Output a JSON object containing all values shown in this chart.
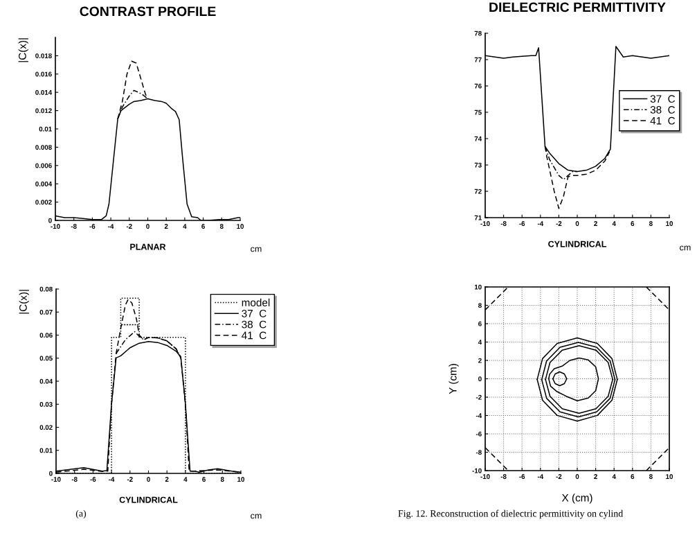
{
  "chart_data": [
    {
      "type": "line",
      "title": "CONTRAST PROFILE",
      "xlabel": "PLANAR",
      "ylabel": "|C(x)|",
      "annotations": [
        "cm"
      ],
      "xlim": [
        -10,
        10
      ],
      "xticks": [
        -10,
        -8,
        -6,
        -4,
        -2,
        0,
        2,
        4,
        6,
        8,
        10
      ],
      "ylim": [
        0,
        0.02
      ],
      "yticks": [
        0,
        0.002,
        0.004,
        0.006,
        0.008,
        0.01,
        0.012,
        0.014,
        0.016,
        0.018
      ],
      "grid": false,
      "legend": false,
      "marker": "none",
      "series": [
        {
          "color": "#000000",
          "line_style": "solid",
          "x": [
            -10,
            -9,
            -8,
            -7,
            -6,
            -5,
            -4.5,
            -4.2,
            -3.25,
            -2.9,
            -2,
            -1.5,
            -0.75,
            0,
            0.75,
            1.5,
            2,
            2.6,
            3,
            3.4,
            3.75,
            4.25,
            4.75,
            5.4,
            5.75,
            6.5,
            7.75,
            8.75,
            9.75,
            10
          ],
          "values": [
            0.0005,
            0.0003,
            0.0003,
            0.0002,
            0.0001,
            0.0001,
            0.0005,
            0.0018,
            0.0111,
            0.012,
            0.0127,
            0.013,
            0.0131,
            0.0133,
            0.0131,
            0.013,
            0.0128,
            0.0122,
            0.0119,
            0.011,
            0.007,
            0.0018,
            0.0004,
            0.0003,
            0,
            0,
            0.0001,
            0.0001,
            0.0003,
            0.0003
          ]
        },
        {
          "color": "#000000",
          "line_style": "dashdot",
          "x": [
            -3.25,
            -2.75,
            -2,
            -1.5,
            -1,
            -0.5,
            0
          ],
          "values": [
            0.0111,
            0.0124,
            0.0136,
            0.0142,
            0.014,
            0.0137,
            0.0133
          ]
        },
        {
          "color": "#000000",
          "line_style": "dashed",
          "x": [
            -3.25,
            -2.75,
            -2.25,
            -1.75,
            -1.25,
            -0.75,
            -0.25,
            0
          ],
          "values": [
            0.0111,
            0.013,
            0.016,
            0.0174,
            0.0172,
            0.0155,
            0.0138,
            0.0133
          ]
        }
      ]
    },
    {
      "type": "line",
      "xlabel": "CYLINDRICAL",
      "ylabel": "|C(x)|",
      "annotations": [
        "cm",
        "(a)"
      ],
      "xlim": [
        -10,
        10
      ],
      "xticks": [
        -10,
        -8,
        -6,
        -4,
        -2,
        0,
        2,
        4,
        6,
        8,
        10
      ],
      "ylim": [
        0,
        0.08
      ],
      "yticks": [
        0,
        0.01,
        0.02,
        0.03,
        0.04,
        0.05,
        0.06,
        0.07,
        0.08
      ],
      "grid": false,
      "legend": "top right",
      "marker": "none",
      "series": [
        {
          "name": "model",
          "color": "#000000",
          "line_style": "dotted",
          "x": [
            -10,
            -4,
            -4,
            -3,
            -3,
            -1,
            -1,
            -3,
            -1,
            -1,
            4,
            4,
            10
          ],
          "values": [
            0,
            0,
            0.059,
            0.059,
            0.076,
            0.076,
            0.0645,
            0.0645,
            0.0645,
            0.059,
            0.059,
            0,
            0
          ]
        },
        {
          "name": "37  C",
          "color": "#000000",
          "line_style": "solid",
          "x": [
            -10,
            -7,
            -5,
            -4.5,
            -4,
            -3.5,
            -3,
            -2,
            -1,
            0,
            1,
            2,
            3,
            3.5,
            4,
            4.5,
            5,
            5.5,
            6.5,
            7.5,
            9,
            10
          ],
          "values": [
            0.001,
            0.0025,
            0.001,
            0.0012,
            0.03,
            0.0501,
            0.051,
            0.0545,
            0.0565,
            0.0572,
            0.0568,
            0.0555,
            0.053,
            0.0505,
            0.03,
            0.001,
            0.001,
            0.0005,
            0.0015,
            0.002,
            0.001,
            0.0005
          ]
        },
        {
          "name": "38  C",
          "color": "#000000",
          "line_style": "dashdot",
          "x": [
            -3.5,
            -2.5,
            -1.5,
            -1,
            -0.5,
            0,
            1,
            2,
            3,
            3.5
          ],
          "values": [
            0.052,
            0.058,
            0.0615,
            0.0595,
            0.058,
            0.059,
            0.0588,
            0.0575,
            0.054,
            0.0505
          ]
        },
        {
          "name": "41  C",
          "color": "#000000",
          "line_style": "dashed",
          "x": [
            -10,
            -7,
            -5,
            -4.4,
            -4,
            -3.5,
            -3,
            -2.5,
            -2.2,
            -1.8,
            -1.3,
            -1,
            -0.5,
            0,
            1,
            2,
            3,
            3.5,
            4,
            4.4,
            5,
            7.5,
            10
          ],
          "values": [
            0.0005,
            0.0018,
            0.0008,
            0.001,
            0.03,
            0.052,
            0.063,
            0.073,
            0.0755,
            0.074,
            0.067,
            0.06,
            0.058,
            0.059,
            0.0588,
            0.0575,
            0.054,
            0.05,
            0.03,
            0.001,
            0.001,
            0.0015,
            0.0005
          ]
        }
      ]
    },
    {
      "type": "line",
      "title": "DIELECTRIC PERMITTIVITY",
      "xlabel": "CYLINDRICAL",
      "annotations": [
        "cm"
      ],
      "xlim": [
        -10,
        10
      ],
      "xticks": [
        -10,
        -8,
        -6,
        -4,
        -2,
        0,
        2,
        4,
        6,
        8,
        10
      ],
      "ylim": [
        71,
        78
      ],
      "yticks": [
        71,
        72,
        73,
        74,
        75,
        76,
        77,
        78
      ],
      "grid": false,
      "legend": "right",
      "marker": "none",
      "series": [
        {
          "name": "37  C",
          "color": "#000000",
          "line_style": "solid",
          "x": [
            -10,
            -8,
            -7,
            -5,
            -4.5,
            -4.2,
            -3.5,
            -3,
            -2,
            -1,
            0,
            1,
            2,
            3,
            3.6,
            4.2,
            5,
            6,
            8,
            10
          ],
          "values": [
            77.15,
            77.05,
            77.1,
            77.15,
            77.15,
            77.45,
            73.7,
            73.45,
            73.05,
            72.8,
            72.75,
            72.8,
            72.95,
            73.25,
            73.6,
            77.5,
            77.1,
            77.15,
            77.05,
            77.15
          ]
        },
        {
          "name": "38  C",
          "color": "#000000",
          "line_style": "dashdot",
          "x": [
            -3.5,
            -3,
            -2,
            -1.5,
            -0.5,
            0
          ],
          "values": [
            73.7,
            73.2,
            72.6,
            72.45,
            72.75,
            72.75
          ]
        },
        {
          "name": "41  C",
          "color": "#000000",
          "line_style": "dashed",
          "x": [
            -3.5,
            -3.3,
            -2.5,
            -2,
            -1.5,
            -1,
            -0.5,
            0,
            1,
            2,
            3,
            3.5
          ],
          "values": [
            73.7,
            73.3,
            72.0,
            71.35,
            71.8,
            72.55,
            72.6,
            72.6,
            72.65,
            72.8,
            73.15,
            73.5
          ]
        }
      ]
    },
    {
      "type": "line",
      "xlabel": "X (cm)",
      "ylabel": "Y (cm)",
      "annotations": [
        "Fig. 12. Reconstruction of dielectric permittivity on cylind"
      ],
      "xlim": [
        -10,
        10
      ],
      "xticks": [
        -10,
        -8,
        -6,
        -4,
        -2,
        0,
        2,
        4,
        6,
        8,
        10
      ],
      "ylim": [
        -10,
        10
      ],
      "yticks": [
        -10,
        -8,
        -6,
        -4,
        -2,
        0,
        2,
        4,
        6,
        8,
        10
      ],
      "grid": true,
      "legend": false,
      "marker": "none",
      "series": [
        {
          "color": "#000000",
          "line_style": "solid",
          "x": [
            -4.35,
            -3.77,
            -2.18,
            0,
            2.18,
            3.77,
            4.35
          ],
          "values": [
            -0.07,
            2.2,
            3.85,
            4.46,
            3.85,
            2.2,
            -0.07
          ]
        },
        {
          "color": "#000000",
          "line_style": "solid",
          "x": [
            -4.35,
            -3.77,
            -2.18,
            0,
            2.18,
            3.77,
            4.35
          ],
          "values": [
            -0.07,
            -2.34,
            -3.99,
            -4.6,
            -3.99,
            -2.34,
            -0.07
          ]
        },
        {
          "color": "#000000",
          "line_style": "solid",
          "x": [
            -3.86,
            -3.33,
            -1.87,
            0.12,
            2.11,
            3.57,
            4.1
          ],
          "values": [
            -0.09,
            1.94,
            3.43,
            3.97,
            3.43,
            1.94,
            -0.09
          ]
        },
        {
          "color": "#000000",
          "line_style": "solid",
          "x": [
            -3.86,
            -3.33,
            -1.87,
            0.12,
            2.11,
            3.57,
            4.1
          ],
          "values": [
            -0.09,
            -2.12,
            -3.61,
            -4.15,
            -3.61,
            -2.12,
            -0.09
          ]
        },
        {
          "color": "#000000",
          "line_style": "solid",
          "x": [
            -3.45,
            -2.96,
            -1.63,
            0.2,
            2.03,
            3.36,
            3.85
          ],
          "values": [
            -0.07,
            1.77,
            3.12,
            3.61,
            3.12,
            1.77,
            -0.07
          ]
        },
        {
          "color": "#000000",
          "line_style": "solid",
          "x": [
            -3.45,
            -2.96,
            -1.63,
            0.2,
            2.03,
            3.36,
            3.85
          ],
          "values": [
            -0.07,
            -1.91,
            -3.26,
            -3.75,
            -3.26,
            -1.91,
            -0.07
          ]
        },
        {
          "color": "#000000",
          "line_style": "solid",
          "x": [
            -2.65,
            -2.4,
            -1.9,
            -1.4,
            -1.15
          ],
          "values": [
            0,
            0.53,
            0.75,
            0.53,
            0
          ]
        },
        {
          "color": "#000000",
          "line_style": "solid",
          "x": [
            -2.65,
            -2.4,
            -1.9,
            -1.4,
            -1.15
          ],
          "values": [
            0,
            -0.53,
            -0.75,
            -0.53,
            0
          ]
        },
        {
          "color": "#000000",
          "line_style": "dashed",
          "x": [
            -10,
            -7.5
          ],
          "values": [
            7.5,
            10
          ]
        },
        {
          "color": "#000000",
          "line_style": "dashed",
          "x": [
            7.5,
            10
          ],
          "values": [
            10,
            7.5
          ]
        },
        {
          "color": "#000000",
          "line_style": "dashed",
          "x": [
            -10,
            -7.5
          ],
          "values": [
            -7.5,
            -10
          ]
        },
        {
          "color": "#000000",
          "line_style": "dashed",
          "x": [
            7.5,
            10
          ],
          "values": [
            -10,
            -7.5
          ]
        }
      ]
    }
  ]
}
